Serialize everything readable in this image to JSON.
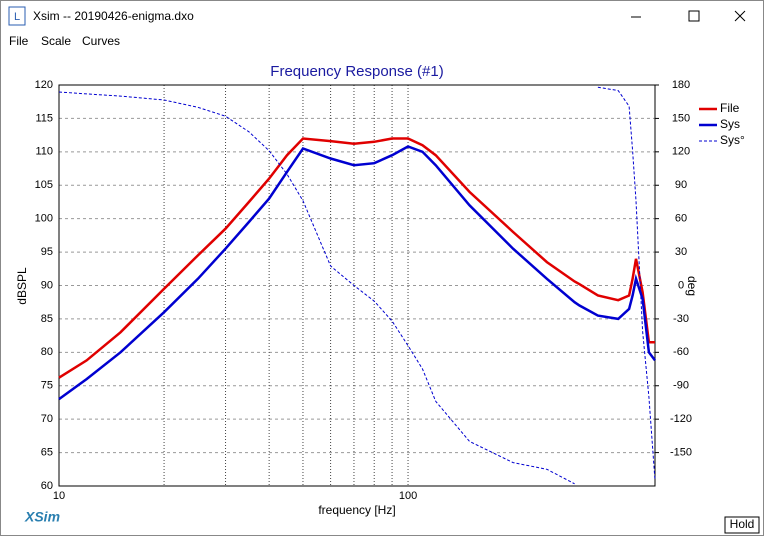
{
  "window": {
    "title": "Xsim -- 20190426-enigma.dxo",
    "menu": [
      "File",
      "Scale",
      "Curves"
    ],
    "brand": "XSim",
    "button": "Hold"
  },
  "chart_data": {
    "type": "line",
    "title": "Frequency Response (#1)",
    "xlabel": "frequency [Hz]",
    "ylabel": "dBSPL",
    "y2label": "deg",
    "xscale": "log",
    "xlim": [
      10,
      510
    ],
    "xticks": [
      10,
      100
    ],
    "xgrid": [
      20,
      30,
      40,
      50,
      60,
      70,
      80,
      90
    ],
    "ylim": [
      60,
      120
    ],
    "yticks": [
      60,
      65,
      70,
      75,
      80,
      85,
      90,
      95,
      100,
      105,
      110,
      115,
      120
    ],
    "y2lim": [
      -180,
      180
    ],
    "y2ticks": [
      -150,
      -120,
      -90,
      -60,
      -30,
      0,
      30,
      60,
      90,
      120,
      150,
      180
    ],
    "grid": true,
    "legend": "right",
    "x": [
      10,
      12,
      15,
      20,
      25,
      30,
      35,
      40,
      45,
      50,
      60,
      70,
      80,
      90,
      100,
      110,
      120,
      150,
      200,
      250,
      300,
      310,
      350,
      400,
      430,
      440,
      450,
      470,
      490,
      510
    ],
    "series": [
      {
        "name": "File",
        "color": "#e00000",
        "style": "solid",
        "values": [
          76.2,
          78.8,
          83,
          89.5,
          94.5,
          98.5,
          102.5,
          106,
          109.5,
          112,
          111.6,
          111.2,
          111.5,
          112,
          112,
          111,
          109.5,
          104,
          98,
          93.5,
          90.6,
          90.2,
          88.5,
          87.8,
          88.5,
          91,
          94,
          89,
          81.5,
          81.5
        ]
      },
      {
        "name": "Sys",
        "color": "#0000d0",
        "style": "solid",
        "values": [
          73,
          76,
          80,
          86,
          91,
          95.5,
          99.5,
          103,
          107,
          110.5,
          109,
          108,
          108.3,
          109.5,
          110.8,
          110,
          108,
          102,
          95.5,
          91,
          87.5,
          87,
          85.5,
          85,
          86.5,
          88.5,
          91,
          88,
          80,
          78.8
        ]
      },
      {
        "name": "Sys°",
        "color": "#0000d0",
        "style": "dashed",
        "axis": "y2",
        "values": [
          173.7,
          172,
          170,
          166.5,
          160,
          152,
          138,
          121,
          100,
          76,
          17.5,
          0,
          -14,
          -32,
          -54,
          -75,
          -104,
          -140,
          -159,
          -165,
          -178,
          null,
          178,
          175,
          161,
          121,
          76,
          -41,
          -100,
          -175
        ]
      }
    ]
  }
}
